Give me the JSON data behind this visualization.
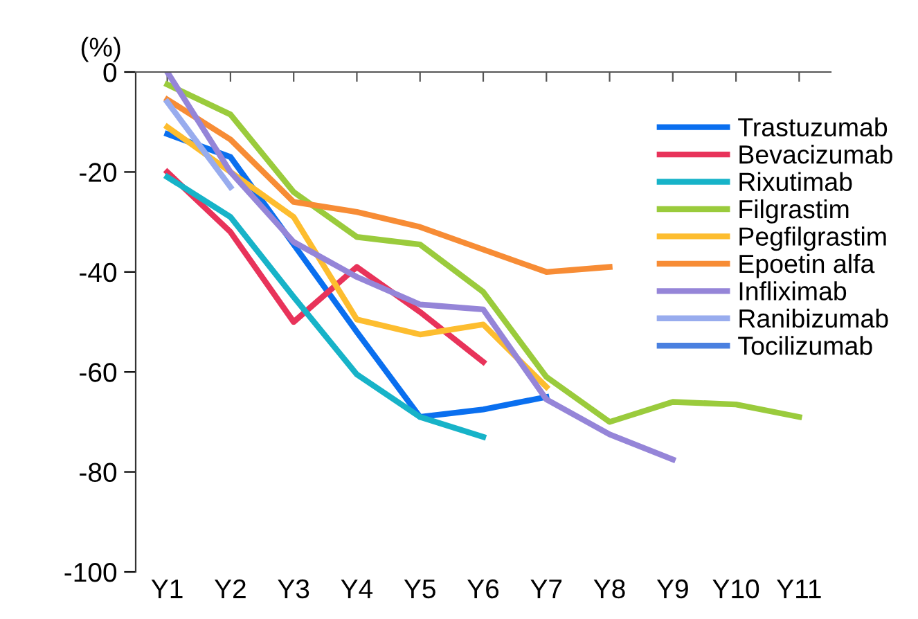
{
  "chart_data": {
    "type": "line",
    "ylabel": "(%)",
    "categories": [
      "Y1",
      "Y2",
      "Y3",
      "Y4",
      "Y5",
      "Y6",
      "Y7",
      "Y8",
      "Y9",
      "Y10",
      "Y11"
    ],
    "ylim": [
      -100,
      0
    ],
    "yticks": [
      -100,
      -80,
      -60,
      -40,
      -20,
      0
    ],
    "grid": false,
    "legend": "top right",
    "marker": "none",
    "line_style": "solid",
    "series": [
      {
        "name": "Trastuzumab",
        "color": "#0a6fef",
        "values": [
          -12.4,
          -17,
          -34.5,
          -52,
          -69,
          -67.5,
          -65,
          null,
          null,
          null,
          null
        ]
      },
      {
        "name": "Bevacizumab",
        "color": "#e8335a",
        "values": [
          -20,
          -32,
          -50,
          -39,
          -48,
          -58,
          null,
          null,
          null,
          null,
          null
        ]
      },
      {
        "name": "Rixutimab",
        "color": "#17b3c8",
        "values": [
          -21,
          -29,
          -45,
          -60.5,
          -69,
          -73,
          null,
          null,
          null,
          null,
          null
        ]
      },
      {
        "name": "Filgrastim",
        "color": "#9acb3c",
        "values": [
          -2.5,
          -8.5,
          -24,
          -33,
          -34.5,
          -44,
          -61,
          -70,
          -66,
          -66.5,
          -69
        ]
      },
      {
        "name": "Pegfilgrastim",
        "color": "#fdbd2f",
        "values": [
          -11,
          -20,
          -29,
          -49.5,
          -52.5,
          -50.5,
          -63,
          null,
          null,
          null,
          null
        ]
      },
      {
        "name": "Epoetin alfa",
        "color": "#f78c35",
        "values": [
          -5.5,
          -13.5,
          -26,
          -28,
          -31,
          -35.5,
          -40,
          -39,
          null,
          null,
          null
        ]
      },
      {
        "name": "Infliximab",
        "color": "#9585d8",
        "values": [
          0,
          -20,
          -34,
          -41,
          -46.5,
          -47.5,
          -65.5,
          -72.5,
          -77.5,
          null,
          null
        ]
      },
      {
        "name": "Ranibizumab",
        "color": "#98acee",
        "values": [
          -6,
          -23,
          null,
          null,
          null,
          null,
          null,
          null,
          null,
          null,
          null
        ]
      },
      {
        "name": "Tocilizumab",
        "color": "#4a80e0",
        "values": [
          null,
          null,
          null,
          null,
          null,
          null,
          null,
          null,
          null,
          null,
          null
        ]
      }
    ]
  }
}
